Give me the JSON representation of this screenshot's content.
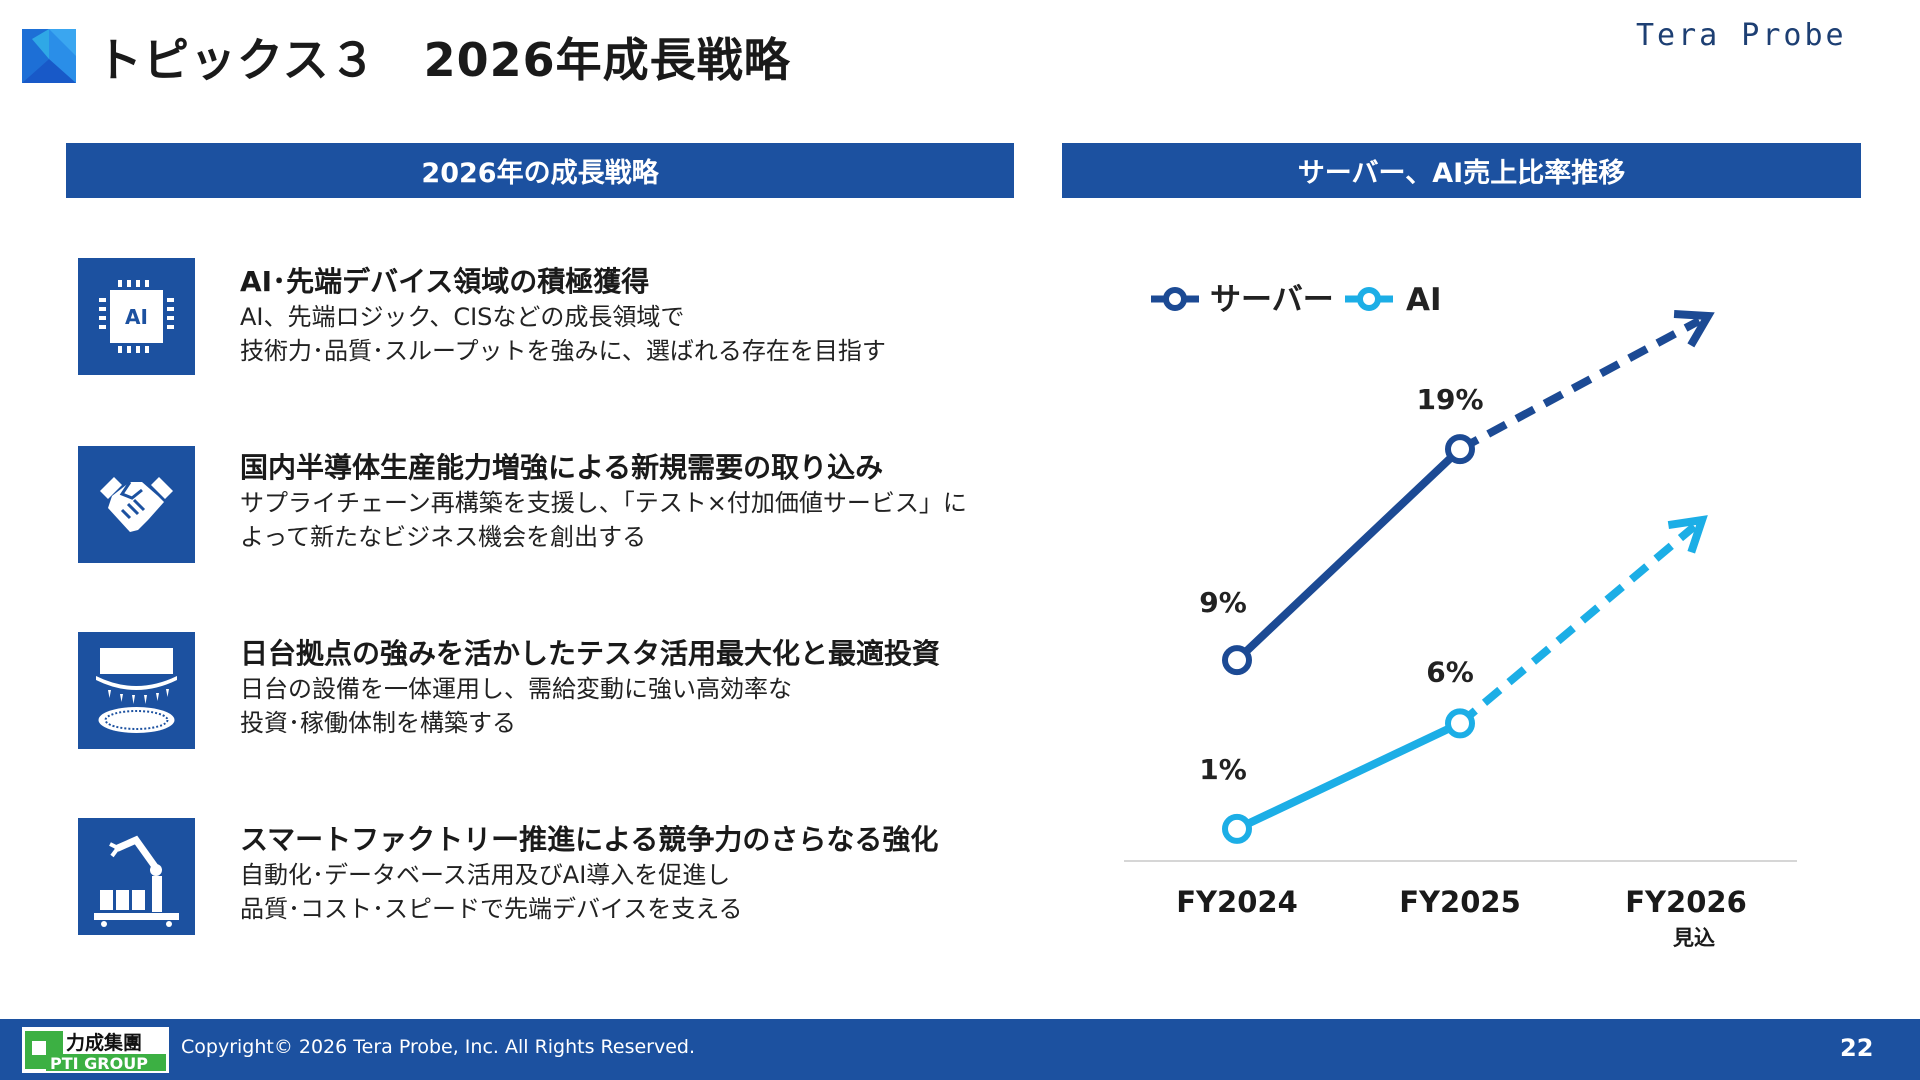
{
  "header": {
    "title": "トピックス３　2026年成長戦略",
    "brand_logo_text": "Tera Probe"
  },
  "left_panel": {
    "heading": "2026年の成長戦略",
    "items": [
      {
        "icon": "ai-chip-icon",
        "title": "AI･先端デバイス領域の積極獲得",
        "lines": [
          "AI、先端ロジック、CISなどの成長領域で",
          "技術力･品質･スループットを強みに、選ばれる存在を目指す"
        ]
      },
      {
        "icon": "handshake-icon",
        "title": "国内半導体生産能力増強による新規需要の取り込み",
        "lines": [
          "サプライチェーン再構築を支援し、「テスト×付加価値サービス」に",
          "よって新たなビジネス機会を創出する"
        ]
      },
      {
        "icon": "wafer-prober-icon",
        "title": "日台拠点の強みを活かしたテスタ活用最大化と最適投資",
        "lines": [
          "日台の設備を一体運用し、需給変動に強い高効率な",
          "投資･稼働体制を構築する"
        ]
      },
      {
        "icon": "robot-arm-icon",
        "title": "スマートファクトリー推進による競争力のさらなる強化",
        "lines": [
          "自動化･データベース活用及びAI導入を促進し",
          "品質･コスト･スピードで先端デバイスを支える"
        ]
      }
    ]
  },
  "right_panel": {
    "heading": "サーバー、AI売上比率推移"
  },
  "chart_data": {
    "type": "line",
    "categories": [
      "FY2024",
      "FY2025",
      "FY2026"
    ],
    "category_sublabels": [
      "",
      "",
      "見込"
    ],
    "series": [
      {
        "name": "サーバー",
        "values": [
          9,
          19,
          null
        ],
        "labels": [
          "9%",
          "19%",
          ""
        ],
        "color": "#1c4a94",
        "trend_to_next": "up-dashed-arrow"
      },
      {
        "name": "AI",
        "values": [
          1,
          6,
          null
        ],
        "labels": [
          "1%",
          "6%",
          ""
        ],
        "color": "#1caee6",
        "trend_to_next": "up-dashed-arrow"
      }
    ],
    "unit": "%",
    "legend": "top-left",
    "grid": false
  },
  "footer": {
    "group_logo_text": "力成集團 PTI GROUP",
    "copyright": "Copyright©  2026 Tera Probe, Inc. All Rights Reserved.",
    "page_number": "22"
  }
}
